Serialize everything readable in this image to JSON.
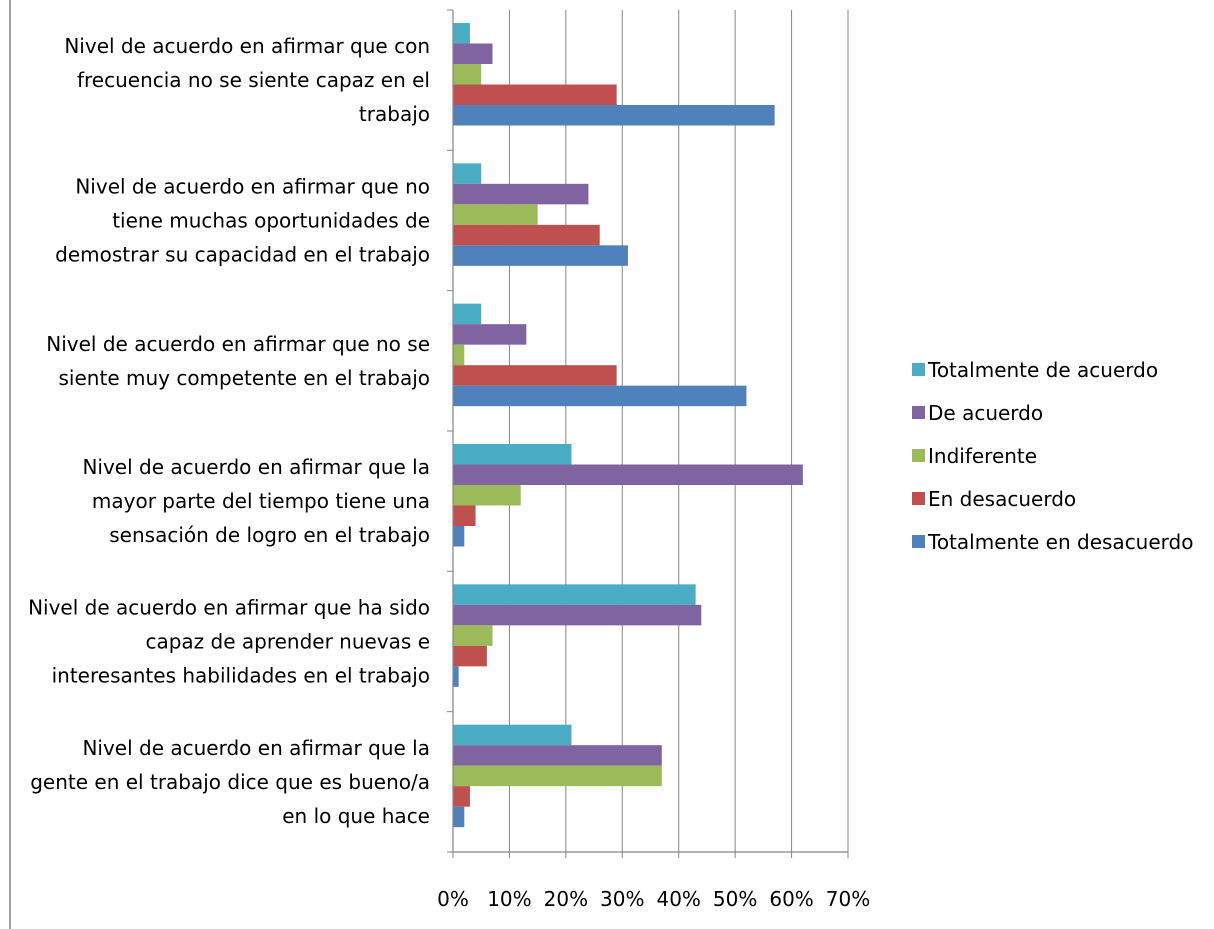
{
  "chart_data": {
    "type": "bar",
    "orientation": "horizontal",
    "categories": [
      [
        "Nivel de acuerdo en afirmar que con",
        "frecuencia no se siente capaz en el",
        "trabajo"
      ],
      [
        "Nivel de acuerdo en afirmar que no",
        "tiene muchas oportunidades de",
        "demostrar su capacidad en el trabajo"
      ],
      [
        "Nivel de acuerdo en afirmar que no se",
        "siente muy competente en el trabajo"
      ],
      [
        "Nivel de acuerdo en afirmar que la",
        "mayor parte del tiempo tiene una",
        "sensación de logro en el trabajo"
      ],
      [
        "Nivel de acuerdo en afirmar que ha sido",
        "capaz de aprender nuevas e",
        "interesantes habilidades en el trabajo"
      ],
      [
        "Nivel de acuerdo en afirmar que la",
        "gente en el trabajo dice que es bueno/a",
        "en lo que hace"
      ]
    ],
    "series": [
      {
        "name": "Totalmente de acuerdo",
        "color": "#4BACC6",
        "values": [
          3,
          5,
          5,
          21,
          43,
          21
        ]
      },
      {
        "name": "De acuerdo",
        "color": "#8064A2",
        "values": [
          7,
          24,
          13,
          62,
          44,
          37
        ]
      },
      {
        "name": "Indiferente",
        "color": "#9BBB59",
        "values": [
          5,
          15,
          2,
          12,
          7,
          37
        ]
      },
      {
        "name": "En desacuerdo",
        "color": "#C0504D",
        "values": [
          29,
          26,
          29,
          4,
          6,
          3
        ]
      },
      {
        "name": "Totalmente en desacuerdo",
        "color": "#4F81BD",
        "values": [
          57,
          31,
          52,
          2,
          1,
          2
        ]
      }
    ],
    "xlim": [
      0,
      70
    ],
    "x_ticks": [
      "0%",
      "10%",
      "20%",
      "30%",
      "40%",
      "50%",
      "60%",
      "70%"
    ],
    "grid": true,
    "legend_position": "right",
    "title": "",
    "xlabel": "",
    "ylabel": ""
  }
}
